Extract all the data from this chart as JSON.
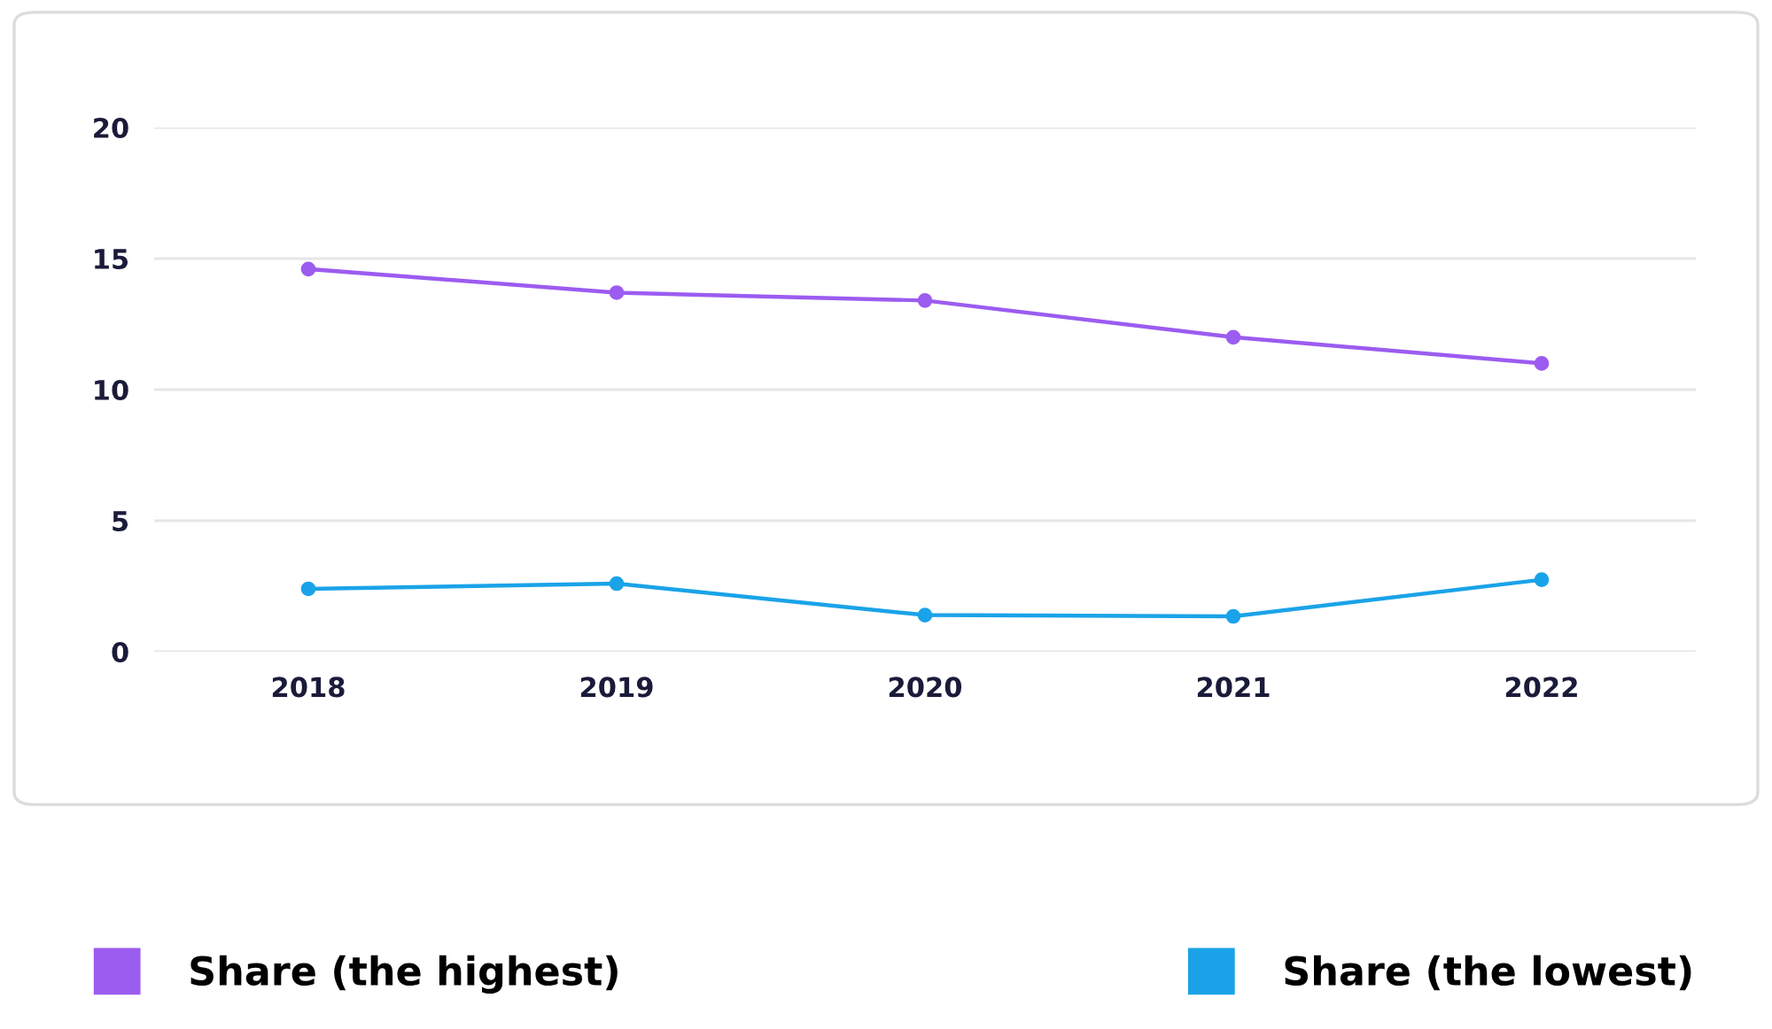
{
  "chart_data": {
    "type": "line",
    "categories": [
      "2018",
      "2019",
      "2020",
      "2021",
      "2022"
    ],
    "series": [
      {
        "name": "Share (the highest)",
        "color": "#9b5cf0",
        "values": [
          14.6,
          13.7,
          13.4,
          12.0,
          11.0
        ]
      },
      {
        "name": "Share (the lowest)",
        "color": "#1aa3e8",
        "values": [
          2.4,
          2.6,
          1.4,
          1.35,
          2.75
        ]
      }
    ],
    "ylim": [
      0,
      20
    ],
    "yticks": [
      0,
      5,
      10,
      15,
      20
    ],
    "grid": "y",
    "legend": "bottom",
    "marker": "circle",
    "line_style": "solid"
  }
}
